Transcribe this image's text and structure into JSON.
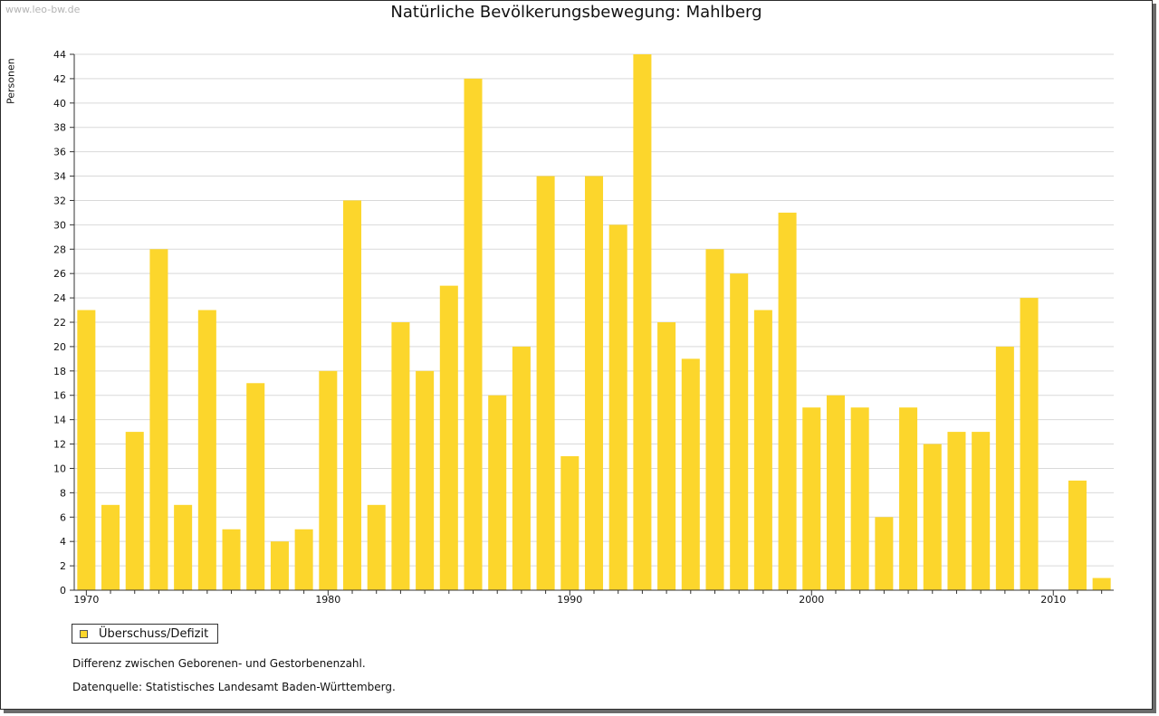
{
  "watermark": "www.leo-bw.de",
  "colors": {
    "bar": "#fcd62c",
    "grid": "#d9d9d9",
    "axis": "#333333"
  },
  "legend": {
    "label": "Überschuss/Defizit",
    "icon": "legend-swatch"
  },
  "notes": {
    "description": "Differenz zwischen Geborenen- und Gestorbenenzahl.",
    "source": "Datenquelle: Statistisches Landesamt Baden-Württemberg."
  },
  "chart_data": {
    "type": "bar",
    "title": "Natürliche Bevölkerungsbewegung: Mahlberg",
    "xlabel": "",
    "ylabel": "Personen",
    "ylim": [
      0,
      44
    ],
    "ytick_step": 2,
    "grid": true,
    "legend_position": "bottom-left",
    "xticks": [
      1970,
      1980,
      1990,
      2000,
      2010
    ],
    "categories": [
      1970,
      1971,
      1972,
      1973,
      1974,
      1975,
      1976,
      1977,
      1978,
      1979,
      1980,
      1981,
      1982,
      1983,
      1984,
      1985,
      1986,
      1987,
      1988,
      1989,
      1990,
      1991,
      1992,
      1993,
      1994,
      1995,
      1996,
      1997,
      1998,
      1999,
      2000,
      2001,
      2002,
      2003,
      2004,
      2005,
      2006,
      2007,
      2008,
      2009,
      2010,
      2011,
      2012
    ],
    "series": [
      {
        "name": "Überschuss/Defizit",
        "values": [
          23,
          7,
          13,
          28,
          7,
          23,
          5,
          17,
          4,
          5,
          18,
          32,
          7,
          22,
          18,
          25,
          42,
          16,
          20,
          34,
          11,
          34,
          30,
          44,
          22,
          19,
          28,
          26,
          23,
          31,
          15,
          16,
          15,
          6,
          15,
          12,
          13,
          13,
          20,
          24,
          0,
          9,
          1
        ]
      }
    ]
  }
}
